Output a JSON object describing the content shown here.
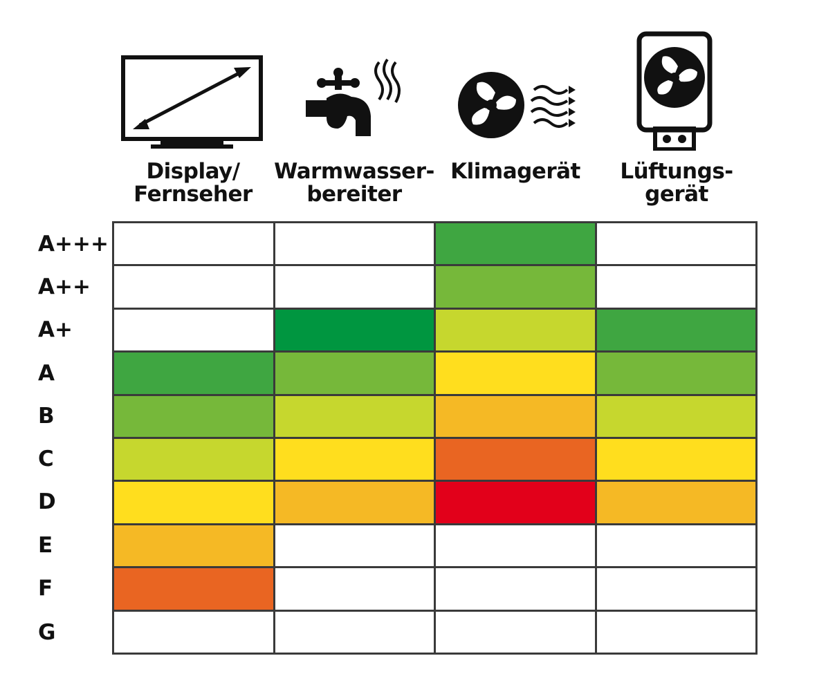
{
  "columns": [
    {
      "line1": "Display/",
      "line2": "Fernseher",
      "icon": "tv-display-icon"
    },
    {
      "line1": "Warmwasser-",
      "line2": "bereiter",
      "icon": "hot-water-tap-icon"
    },
    {
      "line1": "Klimagerät",
      "line2": "",
      "icon": "air-conditioner-fan-icon"
    },
    {
      "line1": "Lüftungs-",
      "line2": "gerät",
      "icon": "ventilation-unit-icon"
    }
  ],
  "rows": [
    "A+++",
    "A++",
    "A+",
    "A",
    "B",
    "C",
    "D",
    "E",
    "F",
    "G"
  ],
  "colors": {
    "dark_green": "#3fa641",
    "deep_green": "#009640",
    "green": "#76b83a",
    "lime": "#c6d72e",
    "yellow": "#ffde1e",
    "amber": "#f5b925",
    "orange": "#e96522",
    "red": "#e2001a",
    "white": "#ffffff"
  },
  "cells": [
    [
      "white",
      "white",
      "dark_green",
      "white"
    ],
    [
      "white",
      "white",
      "green",
      "white"
    ],
    [
      "white",
      "deep_green",
      "lime",
      "dark_green"
    ],
    [
      "dark_green",
      "green",
      "yellow",
      "green"
    ],
    [
      "green",
      "lime",
      "amber",
      "lime"
    ],
    [
      "lime",
      "yellow",
      "orange",
      "yellow"
    ],
    [
      "yellow",
      "amber",
      "red",
      "amber"
    ],
    [
      "amber",
      "white",
      "white",
      "white"
    ],
    [
      "orange",
      "white",
      "white",
      "white"
    ],
    [
      "white",
      "white",
      "white",
      "white"
    ]
  ]
}
